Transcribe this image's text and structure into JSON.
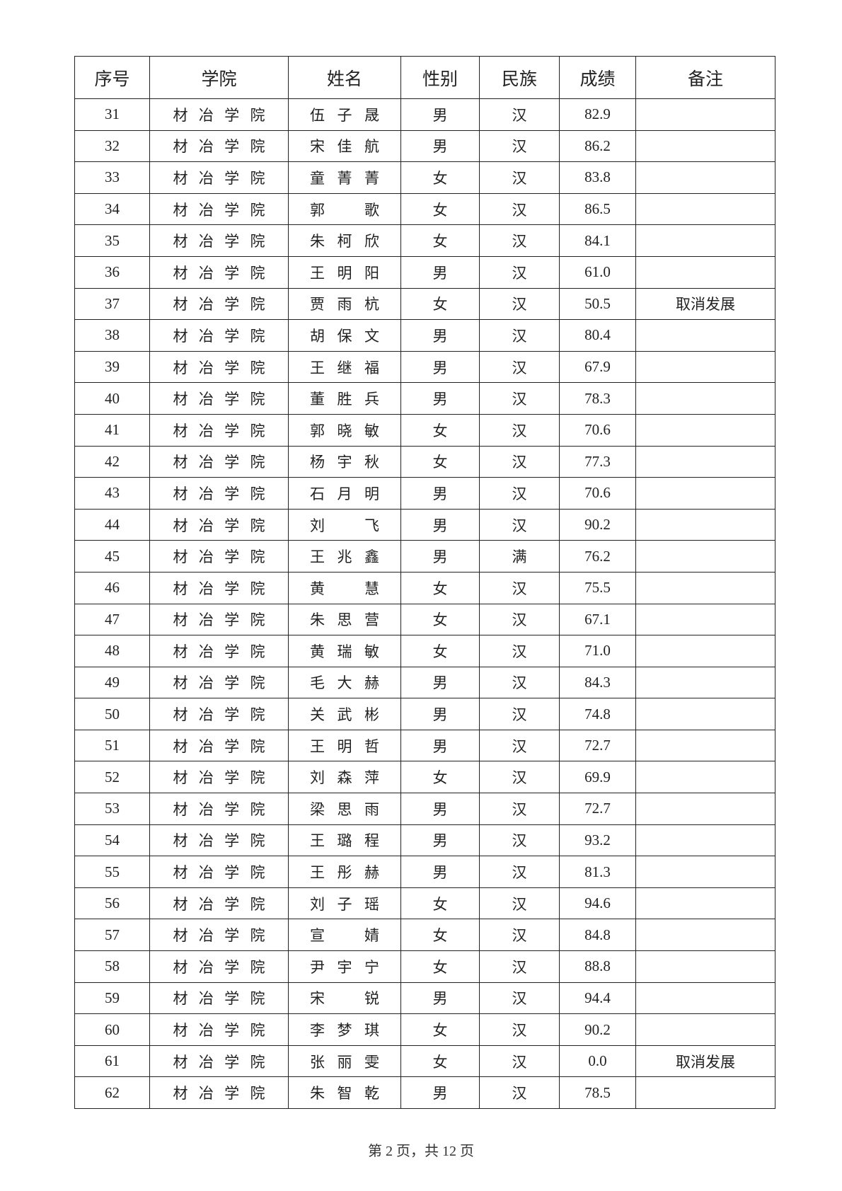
{
  "headers": [
    "序号",
    "学院",
    "姓名",
    "性别",
    "民族",
    "成绩",
    "备注"
  ],
  "rows": [
    [
      "31",
      "材冶学院",
      "伍子晟",
      "男",
      "汉",
      "82.9",
      ""
    ],
    [
      "32",
      "材冶学院",
      "宋佳航",
      "男",
      "汉",
      "86.2",
      ""
    ],
    [
      "33",
      "材冶学院",
      "童菁菁",
      "女",
      "汉",
      "83.8",
      ""
    ],
    [
      "34",
      "材冶学院",
      "郭歌",
      "女",
      "汉",
      "86.5",
      ""
    ],
    [
      "35",
      "材冶学院",
      "朱柯欣",
      "女",
      "汉",
      "84.1",
      ""
    ],
    [
      "36",
      "材冶学院",
      "王明阳",
      "男",
      "汉",
      "61.0",
      ""
    ],
    [
      "37",
      "材冶学院",
      "贾雨杭",
      "女",
      "汉",
      "50.5",
      "取消发展"
    ],
    [
      "38",
      "材冶学院",
      "胡保文",
      "男",
      "汉",
      "80.4",
      ""
    ],
    [
      "39",
      "材冶学院",
      "王继福",
      "男",
      "汉",
      "67.9",
      ""
    ],
    [
      "40",
      "材冶学院",
      "董胜兵",
      "男",
      "汉",
      "78.3",
      ""
    ],
    [
      "41",
      "材冶学院",
      "郭晓敏",
      "女",
      "汉",
      "70.6",
      ""
    ],
    [
      "42",
      "材冶学院",
      "杨宇秋",
      "女",
      "汉",
      "77.3",
      ""
    ],
    [
      "43",
      "材冶学院",
      "石月明",
      "男",
      "汉",
      "70.6",
      ""
    ],
    [
      "44",
      "材冶学院",
      "刘飞",
      "男",
      "汉",
      "90.2",
      ""
    ],
    [
      "45",
      "材冶学院",
      "王兆鑫",
      "男",
      "满",
      "76.2",
      ""
    ],
    [
      "46",
      "材冶学院",
      "黄慧",
      "女",
      "汉",
      "75.5",
      ""
    ],
    [
      "47",
      "材冶学院",
      "朱思营",
      "女",
      "汉",
      "67.1",
      ""
    ],
    [
      "48",
      "材冶学院",
      "黄瑞敏",
      "女",
      "汉",
      "71.0",
      ""
    ],
    [
      "49",
      "材冶学院",
      "毛大赫",
      "男",
      "汉",
      "84.3",
      ""
    ],
    [
      "50",
      "材冶学院",
      "关武彬",
      "男",
      "汉",
      "74.8",
      ""
    ],
    [
      "51",
      "材冶学院",
      "王明哲",
      "男",
      "汉",
      "72.7",
      ""
    ],
    [
      "52",
      "材冶学院",
      "刘森萍",
      "女",
      "汉",
      "69.9",
      ""
    ],
    [
      "53",
      "材冶学院",
      "梁思雨",
      "男",
      "汉",
      "72.7",
      ""
    ],
    [
      "54",
      "材冶学院",
      "王璐程",
      "男",
      "汉",
      "93.2",
      ""
    ],
    [
      "55",
      "材冶学院",
      "王彤赫",
      "男",
      "汉",
      "81.3",
      ""
    ],
    [
      "56",
      "材冶学院",
      "刘子瑶",
      "女",
      "汉",
      "94.6",
      ""
    ],
    [
      "57",
      "材冶学院",
      "宣婧",
      "女",
      "汉",
      "84.8",
      ""
    ],
    [
      "58",
      "材冶学院",
      "尹宇宁",
      "女",
      "汉",
      "88.8",
      ""
    ],
    [
      "59",
      "材冶学院",
      "宋锐",
      "男",
      "汉",
      "94.4",
      ""
    ],
    [
      "60",
      "材冶学院",
      "李梦琪",
      "女",
      "汉",
      "90.2",
      ""
    ],
    [
      "61",
      "材冶学院",
      "张丽雯",
      "女",
      "汉",
      "0.0",
      "取消发展"
    ],
    [
      "62",
      "材冶学院",
      "朱智乾",
      "男",
      "汉",
      "78.5",
      ""
    ]
  ],
  "footer": "第 2 页，共 12 页"
}
